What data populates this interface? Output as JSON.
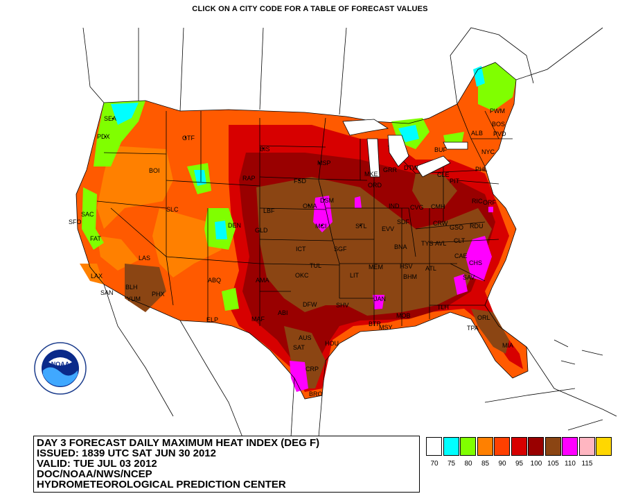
{
  "header": {
    "instruction": "CLICK ON A CITY CODE FOR A TABLE OF FORECAST VALUES"
  },
  "title_block": {
    "line1": "DAY 3 FORECAST DAILY MAXIMUM HEAT INDEX (DEG F)",
    "line2": "ISSUED: 1839 UTC SAT JUN 30 2012",
    "line3": "VALID: TUE JUL 03 2012",
    "line4": "DOC/NOAA/NWS/NCEP",
    "line5": "HYDROMETEOROLOGICAL PREDICTION CENTER"
  },
  "logo": {
    "text": "NOAA",
    "ring_text": "NATIONAL OCEANIC AND ATMOSPHERIC ADMINISTRATION · U.S. DEPARTMENT OF COMMERCE"
  },
  "legend": {
    "bins": [
      {
        "label": "70",
        "color": "#ffffff"
      },
      {
        "label": "75",
        "color": "#00ffff"
      },
      {
        "label": "80",
        "color": "#80ff00"
      },
      {
        "label": "85",
        "color": "#ff8000"
      },
      {
        "label": "90",
        "color": "#ff4000"
      },
      {
        "label": "95",
        "color": "#d70000"
      },
      {
        "label": "100",
        "color": "#990000"
      },
      {
        "label": "105",
        "color": "#8b4513"
      },
      {
        "label": "110",
        "color": "#ff00ff"
      },
      {
        "label": "115",
        "color": "#ffb6c1"
      },
      {
        "label": "",
        "color": "#ffd700"
      }
    ]
  },
  "cities": [
    "SEA",
    "PDX",
    "GTF",
    "BIS",
    "MSP",
    "FSD",
    "RAP",
    "OMA",
    "DSM",
    "MCI",
    "STL",
    "MKE",
    "GRR",
    "DTW",
    "ORD",
    "IND",
    "BUF",
    "ALB",
    "PWM",
    "BOS",
    "PVD",
    "NYC",
    "PHL",
    "RIC",
    "ORF",
    "BOI",
    "SLC",
    "DEN",
    "GLD",
    "LBF",
    "SAC",
    "SFO",
    "FAT",
    "LAS",
    "LAX",
    "SAN",
    "BLH",
    "YUM",
    "PHX",
    "ABQ",
    "ELP",
    "AMA",
    "MAF",
    "ICT",
    "TUL",
    "OKC",
    "SGF",
    "LIT",
    "MEM",
    "BNA",
    "SDF",
    "EVV",
    "CVG",
    "CMH",
    "PIT",
    "CLE",
    "CRW",
    "GSO",
    "RDU",
    "CLT",
    "CAE",
    "CHS",
    "SAV",
    "ATL",
    "BHM",
    "HSV",
    "TYS",
    "AVL",
    "JAN",
    "MOB",
    "BTR",
    "MSY",
    "SHV",
    "DFW",
    "ABI",
    "AUS",
    "SAT",
    "HOU",
    "CRP",
    "BRO",
    "TLH",
    "TPA",
    "ORL",
    "MIA"
  ]
}
